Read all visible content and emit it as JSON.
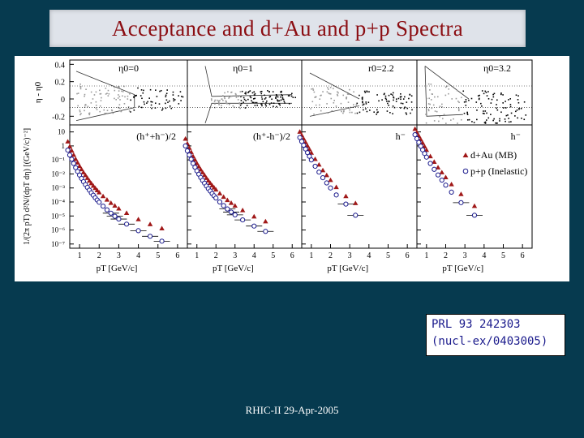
{
  "slide": {
    "title": "Acceptance and d+Au and p+p Spectra",
    "reference": [
      "PRL 93 242303",
      "(nucl-ex/0403005)"
    ],
    "footer": "RHIC-II 29-Apr-2005"
  },
  "colors": {
    "background": "#063a4f",
    "title": "#8b0d12",
    "reference": "#1a1a8c",
    "dAu": "#a01818",
    "pp": "#1a1a8c"
  },
  "chart_data": [
    {
      "type": "scatter",
      "panel": "acceptance",
      "ylabel": "η - η0",
      "yticks": [
        "0.4",
        "0.2",
        "0",
        "-0.2"
      ],
      "ylim": [
        -0.3,
        0.45
      ],
      "panels": [
        {
          "label": "η0=0"
        },
        {
          "label": "η0=1"
        },
        {
          "label": "r0=2.2"
        },
        {
          "label": "η0=3.2"
        }
      ]
    },
    {
      "type": "scatter",
      "panel": "spectra",
      "log_y": true,
      "ylabel": "1/(2π pT) d²N/(dpT dη) [(GeV/c)⁻²]",
      "xlabel": "pT [GeV/c]",
      "xticks": [
        "1",
        "2",
        "3",
        "4",
        "5",
        "6"
      ],
      "yticks": [
        "10",
        "1",
        "10⁻¹",
        "10⁻²",
        "10⁻³",
        "10⁻⁴",
        "10⁻⁵",
        "10⁻⁶",
        "10⁻⁷"
      ],
      "xlim": [
        0.5,
        6.5
      ],
      "ylim_exp": [
        -7.3,
        1.5
      ],
      "legend": [
        "d+Au (MB)",
        "p+p (Inelastic)"
      ],
      "panels": [
        {
          "label": "(h⁺+h⁻)/2",
          "series": [
            {
              "name": "d+Au (MB)",
              "x": [
                0.4,
                0.5,
                0.6,
                0.7,
                0.8,
                0.9,
                1.0,
                1.1,
                1.2,
                1.3,
                1.4,
                1.5,
                1.6,
                1.7,
                1.8,
                1.9,
                2.0,
                2.2,
                2.4,
                2.6,
                2.8,
                3.0,
                3.4,
                4.0,
                4.6,
                5.2
              ],
              "y": [
                0.3,
                -0.05,
                -0.35,
                -0.65,
                -0.95,
                -1.2,
                -1.45,
                -1.68,
                -1.9,
                -2.1,
                -2.3,
                -2.5,
                -2.68,
                -2.86,
                -3.02,
                -3.18,
                -3.33,
                -3.6,
                -3.85,
                -4.08,
                -4.28,
                -4.48,
                -4.8,
                -5.25,
                -5.6,
                -5.9
              ]
            },
            {
              "name": "p+p (Inelastic)",
              "x": [
                0.4,
                0.5,
                0.6,
                0.7,
                0.8,
                0.9,
                1.0,
                1.1,
                1.2,
                1.3,
                1.4,
                1.5,
                1.6,
                1.7,
                1.8,
                1.9,
                2.0,
                2.2,
                2.4,
                2.6,
                2.8,
                3.0,
                3.4,
                4.0,
                4.6,
                5.2
              ],
              "y": [
                -0.3,
                -0.65,
                -0.95,
                -1.25,
                -1.55,
                -1.82,
                -2.08,
                -2.32,
                -2.55,
                -2.76,
                -2.96,
                -3.16,
                -3.35,
                -3.52,
                -3.7,
                -3.86,
                -4.02,
                -4.3,
                -4.56,
                -4.8,
                -5.02,
                -5.22,
                -5.58,
                -6.05,
                -6.45,
                -6.8
              ]
            }
          ]
        },
        {
          "label": "(h⁺-h⁻)/2",
          "series": [
            {
              "name": "d+Au (MB)",
              "x": [
                0.4,
                0.5,
                0.6,
                0.7,
                0.8,
                0.9,
                1.0,
                1.1,
                1.2,
                1.3,
                1.4,
                1.5,
                1.6,
                1.7,
                1.8,
                1.9,
                2.0,
                2.2,
                2.4,
                2.6,
                2.8,
                3.0,
                3.4,
                4.0,
                4.6
              ],
              "y": [
                0.5,
                0.15,
                -0.15,
                -0.45,
                -0.75,
                -1.0,
                -1.25,
                -1.48,
                -1.7,
                -1.9,
                -2.1,
                -2.3,
                -2.48,
                -2.66,
                -2.83,
                -2.98,
                -3.13,
                -3.4,
                -3.65,
                -3.88,
                -4.08,
                -4.28,
                -4.6,
                -5.05,
                -5.4
              ]
            },
            {
              "name": "p+p (Inelastic)",
              "x": [
                0.4,
                0.5,
                0.6,
                0.7,
                0.8,
                0.9,
                1.0,
                1.1,
                1.2,
                1.3,
                1.4,
                1.5,
                1.6,
                1.7,
                1.8,
                1.9,
                2.0,
                2.2,
                2.4,
                2.6,
                2.8,
                3.0,
                3.4,
                4.0,
                4.6
              ],
              "y": [
                0.0,
                -0.35,
                -0.65,
                -0.95,
                -1.25,
                -1.52,
                -1.78,
                -2.02,
                -2.25,
                -2.46,
                -2.66,
                -2.86,
                -3.05,
                -3.22,
                -3.4,
                -3.56,
                -3.72,
                -4.0,
                -4.26,
                -4.5,
                -4.72,
                -4.92,
                -5.28,
                -5.72,
                -6.1
              ]
            }
          ]
        },
        {
          "label": "h⁻",
          "series": [
            {
              "name": "d+Au (MB)",
              "x": [
                0.4,
                0.5,
                0.6,
                0.7,
                0.8,
                0.9,
                1.0,
                1.2,
                1.4,
                1.6,
                1.8,
                2.0,
                2.3,
                2.8,
                3.3
              ],
              "y": [
                1.0,
                0.75,
                0.5,
                0.25,
                0.0,
                -0.25,
                -0.5,
                -0.95,
                -1.35,
                -1.75,
                -2.1,
                -2.45,
                -2.95,
                -3.6,
                -4.1
              ]
            },
            {
              "name": "p+p (Inelastic)",
              "x": [
                0.4,
                0.5,
                0.6,
                0.7,
                0.8,
                0.9,
                1.0,
                1.2,
                1.4,
                1.6,
                1.8,
                2.0,
                2.3,
                2.8,
                3.3
              ],
              "y": [
                0.6,
                0.32,
                0.05,
                -0.22,
                -0.48,
                -0.74,
                -1.0,
                -1.45,
                -1.87,
                -2.27,
                -2.64,
                -3.0,
                -3.5,
                -4.15,
                -4.95
              ]
            }
          ]
        },
        {
          "label": "h⁻",
          "series": [
            {
              "name": "d+Au (MB)",
              "x": [
                0.4,
                0.5,
                0.6,
                0.7,
                0.8,
                0.9,
                1.0,
                1.2,
                1.4,
                1.6,
                1.8,
                2.0,
                2.3,
                2.8,
                3.5
              ],
              "y": [
                1.2,
                0.95,
                0.7,
                0.45,
                0.2,
                -0.05,
                -0.3,
                -0.75,
                -1.15,
                -1.55,
                -1.9,
                -2.25,
                -2.75,
                -3.45,
                -4.3
              ]
            },
            {
              "name": "p+p (Inelastic)",
              "x": [
                0.4,
                0.5,
                0.6,
                0.7,
                0.8,
                0.9,
                1.0,
                1.2,
                1.4,
                1.6,
                1.8,
                2.0,
                2.3,
                2.8,
                3.5
              ],
              "y": [
                0.8,
                0.52,
                0.25,
                -0.02,
                -0.28,
                -0.54,
                -0.8,
                -1.25,
                -1.67,
                -2.07,
                -2.44,
                -2.8,
                -3.3,
                -4.05,
                -4.95
              ]
            }
          ]
        }
      ]
    }
  ]
}
